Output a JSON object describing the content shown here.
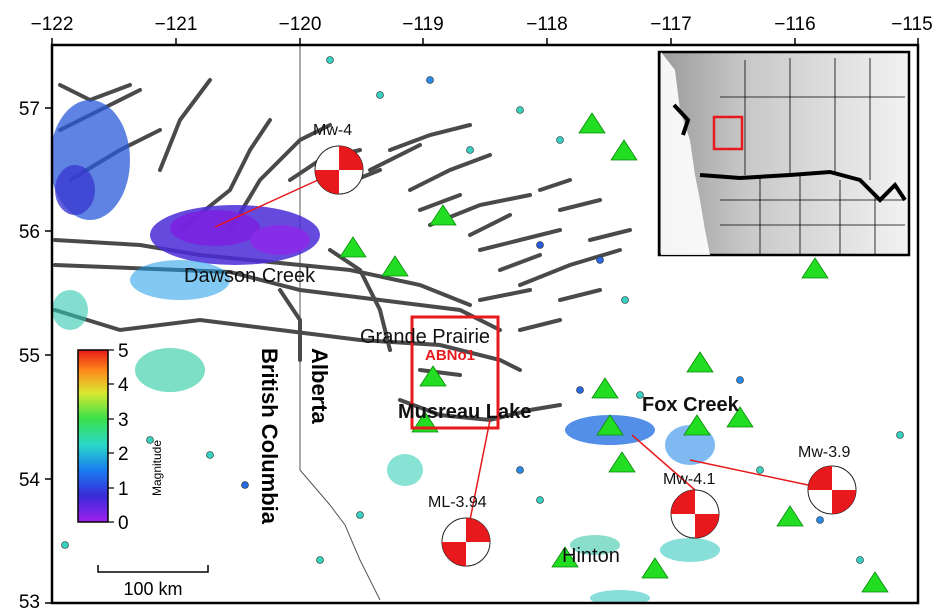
{
  "axes": {
    "lon_ticks": [
      "−122",
      "−121",
      "−120",
      "−119",
      "−118",
      "−117",
      "−116",
      "−115"
    ],
    "lat_ticks": [
      "57",
      "56",
      "55",
      "54",
      "53"
    ]
  },
  "places": {
    "dawson_creek": "Dawson Creek",
    "grande_prairie": "Grande Prairie",
    "musreau_lake": "Musreau Lake",
    "fox_creek": "Fox Creek",
    "hinton": "Hinton"
  },
  "provinces": {
    "bc": "British Columbia",
    "ab": "Alberta"
  },
  "station": {
    "label": "ABNo1",
    "color": "#e8191c"
  },
  "events": [
    {
      "label": "Mw-4",
      "lon": -119.7,
      "lat": 56.45
    },
    {
      "label": "ML-3.94",
      "lon": -118.6,
      "lat": 53.5
    },
    {
      "label": "Mw-4.1",
      "lon": -116.9,
      "lat": 53.7
    },
    {
      "label": "Mw-3.9",
      "lon": -115.8,
      "lat": 53.9
    }
  ],
  "colorbar": {
    "title": "Magnitude",
    "ticks": [
      "5",
      "4",
      "3",
      "2",
      "1",
      "0"
    ],
    "range": [
      0,
      5
    ]
  },
  "scalebar": {
    "label": "100 km"
  },
  "colors": {
    "fault": "#4a4a4a",
    "station_triangle": "#22dd22",
    "beachball": "#e8191c",
    "study_box": "#e8191c"
  },
  "icons": {
    "station": "green-triangle-icon",
    "focal_mechanism": "beachball-icon"
  }
}
